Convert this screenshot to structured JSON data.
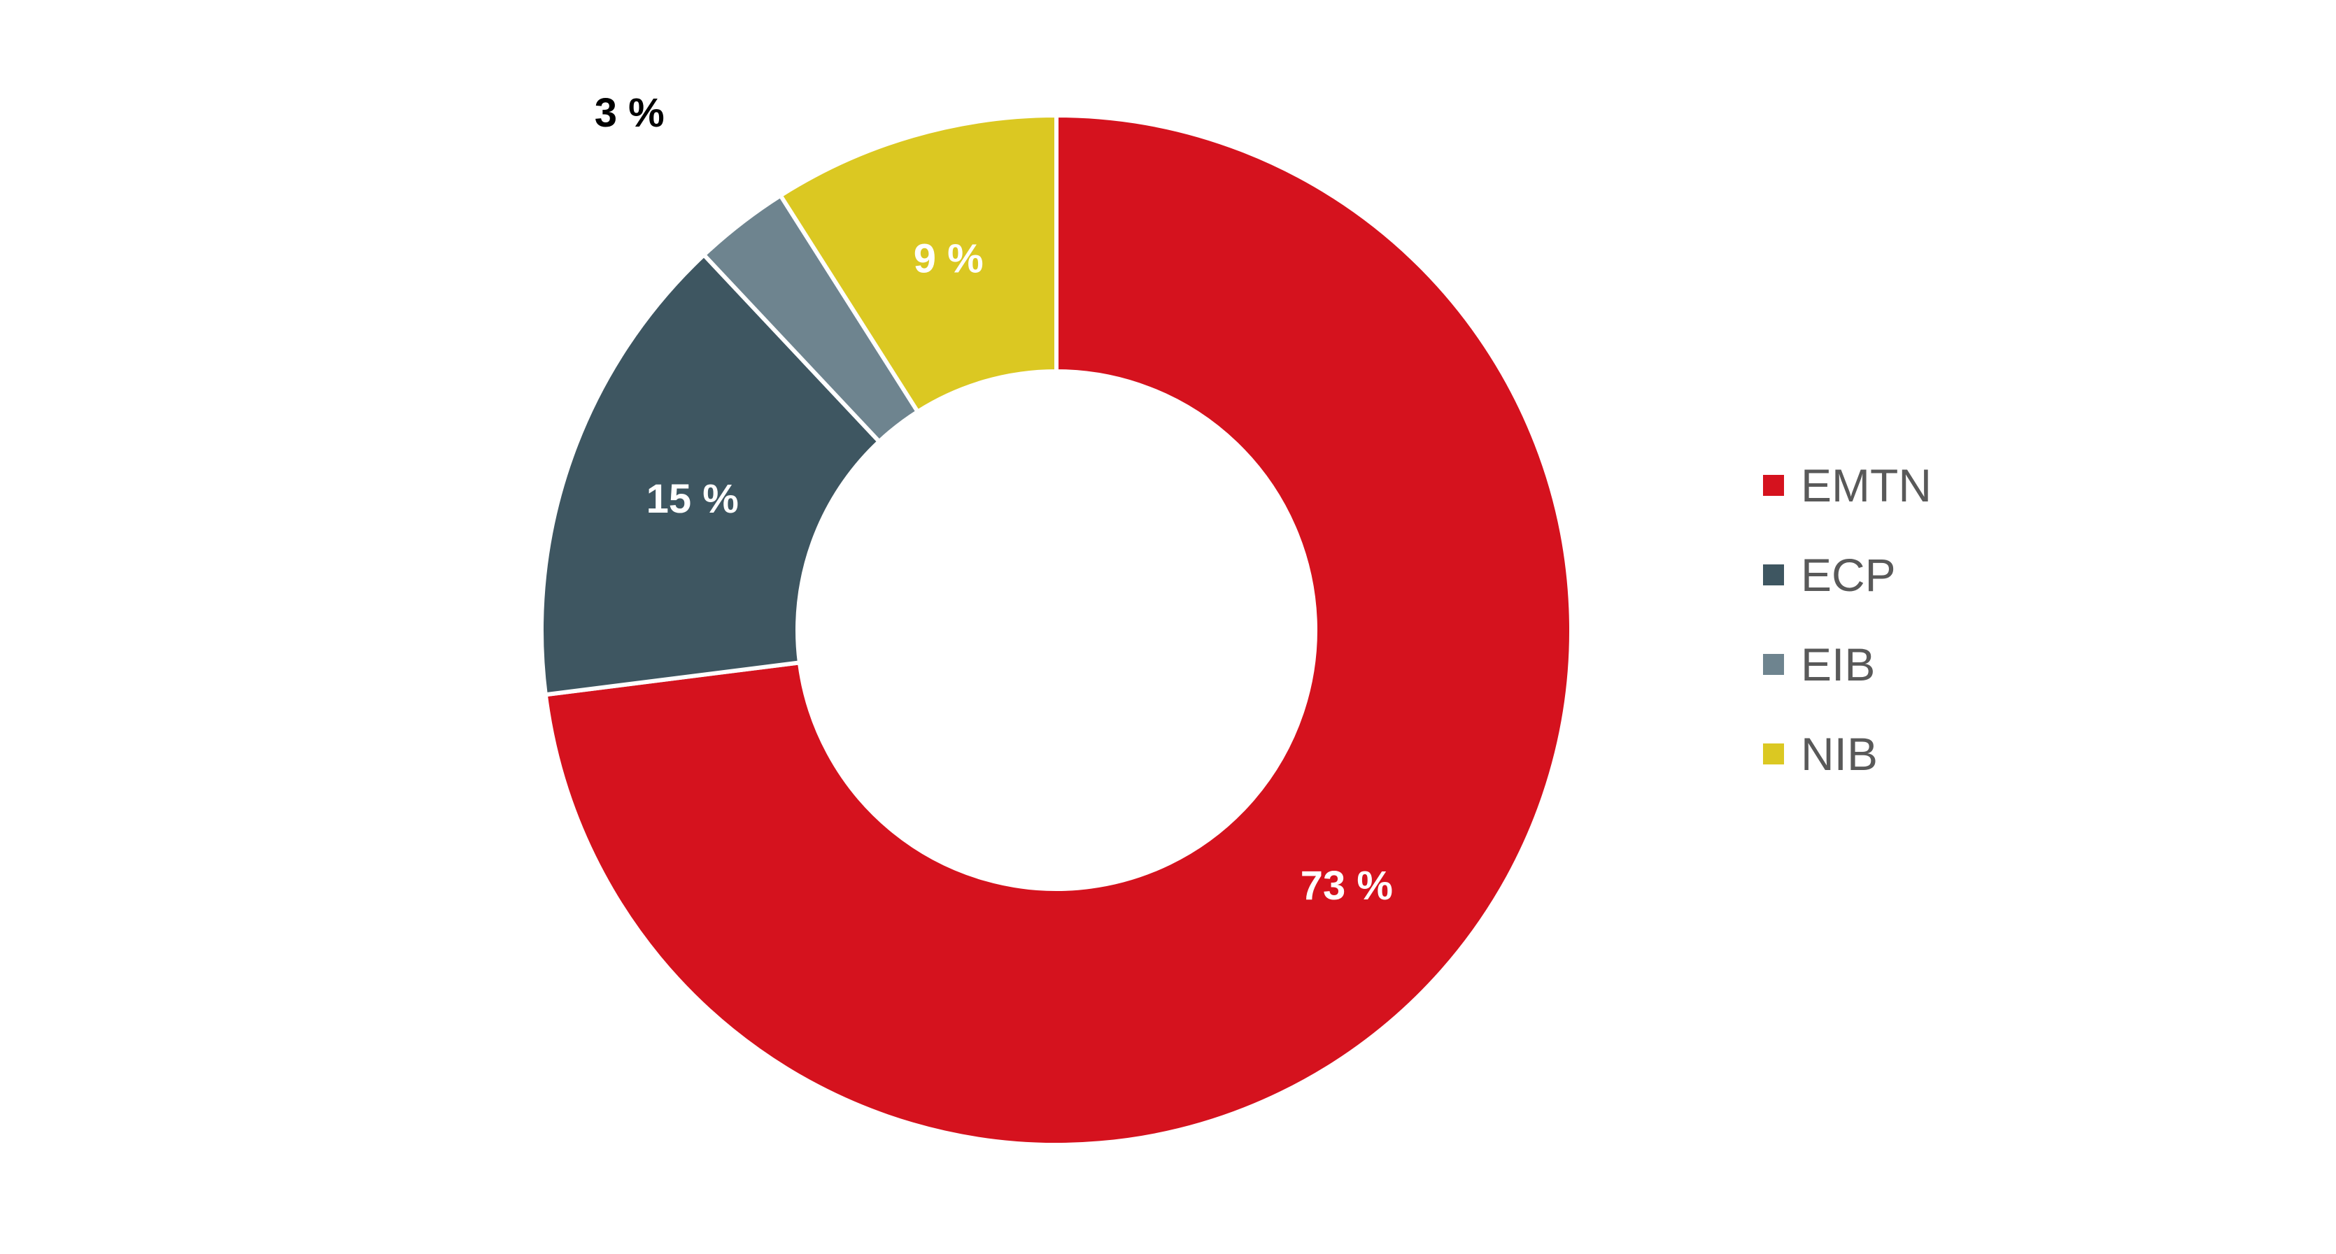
{
  "chart_data": {
    "type": "pie",
    "variant": "donut",
    "title": "",
    "categories": [
      "EMTN",
      "ECP",
      "EIB",
      "NIB"
    ],
    "values": [
      73,
      15,
      3,
      9
    ],
    "data_labels": [
      "73 %",
      "15 %",
      "3 %",
      "9 %"
    ],
    "colors": [
      "#d5121e",
      "#3e5661",
      "#6e848f",
      "#dbc822"
    ],
    "label_colors": [
      "#ffffff",
      "#ffffff",
      "#000000",
      "#ffffff"
    ],
    "start_angle_deg": 0,
    "direction": "clockwise",
    "legend": {
      "position": "right",
      "entries": [
        "EMTN",
        "ECP",
        "EIB",
        "NIB"
      ],
      "text_color": "#595959"
    }
  }
}
